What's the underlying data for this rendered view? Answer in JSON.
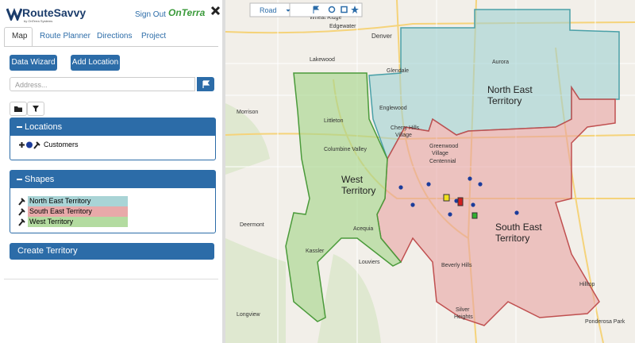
{
  "header": {
    "brand": "RouteSavvy",
    "tagline": "by OnTerra Systems",
    "sign_out": "Sign Out",
    "partner": "OnTerra"
  },
  "tabs": [
    "Map",
    "Route Planner",
    "Directions",
    "Project"
  ],
  "buttons": {
    "data_wizard": "Data Wizard",
    "add_location": "Add Location"
  },
  "address_placeholder": "Address...",
  "locations": {
    "title": "Locations",
    "items": [
      "Customers"
    ]
  },
  "shapes": {
    "title": "Shapes",
    "items": [
      "North East Territory",
      "South East Territory",
      "West Territory"
    ]
  },
  "create_territory": "Create Territory",
  "map": {
    "style": "Road",
    "territories": [
      {
        "lines": [
          "North East",
          "Territory"
        ]
      },
      {
        "lines": [
          "South East",
          "Territory"
        ]
      },
      {
        "lines": [
          "West",
          "Territory"
        ]
      }
    ],
    "places": [
      "Wheat Ridge",
      "Edgewater",
      "Denver",
      "Lakewood",
      "Glendale",
      "Aurora",
      "Morrison",
      "Englewood",
      "Cherry Hills",
      "Village",
      "Greenwood",
      "Village",
      "Centennial",
      "Littleton",
      "Columbine Valley",
      "Deermont",
      "Acequia",
      "Kassler",
      "Louviers",
      "Beverly Hills",
      "Silver",
      "Heights",
      "Hilltop",
      "Longview",
      "Ponderosa Park"
    ]
  }
}
